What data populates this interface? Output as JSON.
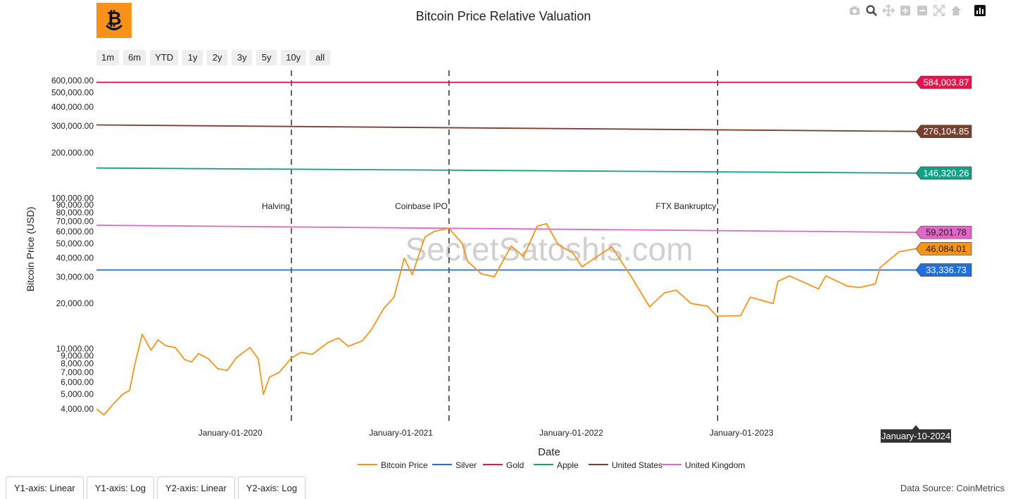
{
  "colors": {
    "bitcoin": "#f7931a",
    "silver": "#1f6fdc",
    "gold": "#e8144e",
    "apple": "#14a085",
    "united_states": "#7b3f2e",
    "united_kingdom": "#e066c7",
    "logo_bg": "#f7931a"
  },
  "header": {
    "logo_icon": "bitcoin-smile-icon",
    "title": "Bitcoin Price Relative Valuation"
  },
  "range_selector": [
    "1m",
    "6m",
    "YTD",
    "1y",
    "2y",
    "3y",
    "5y",
    "10y",
    "all"
  ],
  "modebar_icons": [
    "camera-icon",
    "zoom-icon",
    "pan-icon",
    "zoom-in-icon",
    "zoom-out-icon",
    "autoscale-icon",
    "home-icon",
    "plotly-logo-icon"
  ],
  "watermark": "SecretSatoshis.com",
  "footer": {
    "axis_buttons": [
      "Y1-axis: Linear",
      "Y1-axis: Log",
      "Y2-axis: Linear",
      "Y2-axis: Log"
    ],
    "source": "Data Source: CoinMetrics"
  },
  "chart_data": {
    "type": "line",
    "title": "Bitcoin Price Relative Valuation",
    "xlabel": "Date",
    "ylabel": "Bitcoin Price (USD)",
    "yscale": "log",
    "xrange": [
      "2019-03-20",
      "2024-01-10"
    ],
    "yrange": [
      3400,
      620000
    ],
    "grid": false,
    "legend_position": "bottom-center",
    "x_ticks": [
      "January-01-2020",
      "January-01-2021",
      "January-01-2022",
      "January-01-2023"
    ],
    "hover_date": "January-10-2024",
    "y_ticks": [
      {
        "value": 4000,
        "label": "4,000.00"
      },
      {
        "value": 5000,
        "label": "5,000.00"
      },
      {
        "value": 6000,
        "label": "6,000.00"
      },
      {
        "value": 7000,
        "label": "7,000.00"
      },
      {
        "value": 8000,
        "label": "8,000.00"
      },
      {
        "value": 9000,
        "label": "9,000.00"
      },
      {
        "value": 10000,
        "label": "10,000.00"
      },
      {
        "value": 20000,
        "label": "20,000.00"
      },
      {
        "value": 30000,
        "label": "30,000.00"
      },
      {
        "value": 40000,
        "label": "40,000.00"
      },
      {
        "value": 50000,
        "label": "50,000.00"
      },
      {
        "value": 60000,
        "label": "60,000.00"
      },
      {
        "value": 70000,
        "label": "70,000.00"
      },
      {
        "value": 80000,
        "label": "80,000.00"
      },
      {
        "value": 90000,
        "label": "90,000.00"
      },
      {
        "value": 100000,
        "label": "100,000.00"
      },
      {
        "value": 200000,
        "label": "200,000.00"
      },
      {
        "value": 300000,
        "label": "300,000.00"
      },
      {
        "value": 400000,
        "label": "400,000.00"
      },
      {
        "value": 500000,
        "label": "500,000.00"
      },
      {
        "value": 600000,
        "label": "600,000.00"
      }
    ],
    "events": [
      {
        "date": "2020-05-11",
        "label": "Halving"
      },
      {
        "date": "2021-04-14",
        "label": "Coinbase IPO"
      },
      {
        "date": "2022-11-11",
        "label": "FTX Bankruptcy"
      }
    ],
    "series": [
      {
        "name": "Bitcoin Price",
        "key": "bitcoin",
        "end_label": "46,084.01",
        "points": [
          [
            "2019-03-20",
            4000
          ],
          [
            "2019-04-05",
            3650
          ],
          [
            "2019-04-25",
            4300
          ],
          [
            "2019-05-15",
            5000
          ],
          [
            "2019-05-30",
            5300
          ],
          [
            "2019-06-10",
            7800
          ],
          [
            "2019-06-26",
            12500
          ],
          [
            "2019-07-15",
            9800
          ],
          [
            "2019-07-30",
            11500
          ],
          [
            "2019-08-15",
            10500
          ],
          [
            "2019-09-05",
            10200
          ],
          [
            "2019-09-25",
            8500
          ],
          [
            "2019-10-10",
            8200
          ],
          [
            "2019-10-25",
            9300
          ],
          [
            "2019-11-15",
            8600
          ],
          [
            "2019-12-05",
            7400
          ],
          [
            "2019-12-25",
            7200
          ],
          [
            "2020-01-15",
            8800
          ],
          [
            "2020-02-12",
            10200
          ],
          [
            "2020-03-01",
            8600
          ],
          [
            "2020-03-12",
            5000
          ],
          [
            "2020-03-25",
            6500
          ],
          [
            "2020-04-15",
            7000
          ],
          [
            "2020-05-11",
            8700
          ],
          [
            "2020-06-01",
            9500
          ],
          [
            "2020-06-25",
            9200
          ],
          [
            "2020-07-28",
            11000
          ],
          [
            "2020-08-20",
            11800
          ],
          [
            "2020-09-10",
            10400
          ],
          [
            "2020-10-10",
            11300
          ],
          [
            "2020-10-30",
            13500
          ],
          [
            "2020-11-25",
            18500
          ],
          [
            "2020-12-17",
            22000
          ],
          [
            "2021-01-08",
            40000
          ],
          [
            "2021-01-25",
            31000
          ],
          [
            "2021-02-21",
            55000
          ],
          [
            "2021-03-13",
            60000
          ],
          [
            "2021-04-14",
            63000
          ],
          [
            "2021-05-12",
            50000
          ],
          [
            "2021-05-24",
            38000
          ],
          [
            "2021-06-22",
            31500
          ],
          [
            "2021-07-20",
            30000
          ],
          [
            "2021-08-25",
            48000
          ],
          [
            "2021-09-21",
            41000
          ],
          [
            "2021-10-20",
            65000
          ],
          [
            "2021-11-09",
            67500
          ],
          [
            "2021-12-04",
            49000
          ],
          [
            "2022-01-05",
            43000
          ],
          [
            "2022-01-24",
            35000
          ],
          [
            "2022-03-29",
            47500
          ],
          [
            "2022-05-10",
            30000
          ],
          [
            "2022-06-18",
            19000
          ],
          [
            "2022-07-20",
            23500
          ],
          [
            "2022-08-14",
            24500
          ],
          [
            "2022-09-15",
            20000
          ],
          [
            "2022-10-20",
            19200
          ],
          [
            "2022-11-09",
            16500
          ],
          [
            "2022-12-30",
            16600
          ],
          [
            "2023-01-20",
            22000
          ],
          [
            "2023-03-10",
            20000
          ],
          [
            "2023-03-20",
            28000
          ],
          [
            "2023-04-14",
            30500
          ],
          [
            "2023-06-15",
            25000
          ],
          [
            "2023-07-01",
            30500
          ],
          [
            "2023-08-17",
            26000
          ],
          [
            "2023-09-12",
            25500
          ],
          [
            "2023-10-15",
            27000
          ],
          [
            "2023-10-25",
            34500
          ],
          [
            "2023-12-05",
            44000
          ],
          [
            "2024-01-10",
            46084
          ]
        ]
      },
      {
        "name": "Silver",
        "key": "silver",
        "end_label": "33,336.73",
        "points": [
          [
            "2019-03-20",
            33336.73
          ],
          [
            "2024-01-10",
            33336.73
          ]
        ]
      },
      {
        "name": "Gold",
        "key": "gold",
        "end_label": "584,003.87",
        "points": [
          [
            "2019-03-20",
            584003.87
          ],
          [
            "2024-01-10",
            584003.87
          ]
        ]
      },
      {
        "name": "Apple",
        "key": "apple",
        "end_label": "146,320.26",
        "points": [
          [
            "2019-03-20",
            158000
          ],
          [
            "2024-01-10",
            146320.26
          ]
        ]
      },
      {
        "name": "United States",
        "key": "united_states",
        "end_label": "276,104.85",
        "points": [
          [
            "2019-03-20",
            305000
          ],
          [
            "2024-01-10",
            276104.85
          ]
        ]
      },
      {
        "name": "United Kingdom",
        "key": "united_kingdom",
        "end_label": "59,201.78",
        "points": [
          [
            "2019-03-20",
            66000
          ],
          [
            "2024-01-10",
            59201.78
          ]
        ]
      }
    ]
  }
}
